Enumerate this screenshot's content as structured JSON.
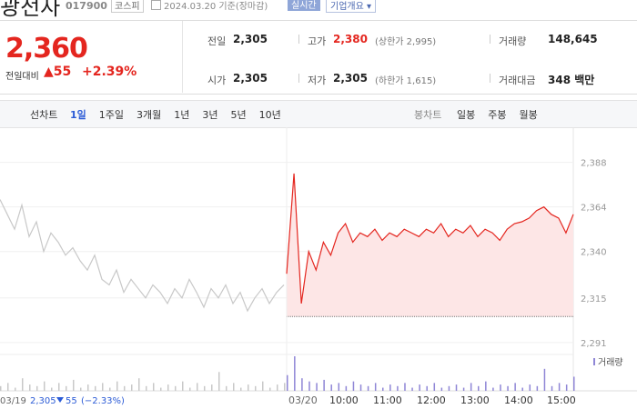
{
  "header": {
    "title": "광전자",
    "code": "017900",
    "market": "코스피",
    "date": "2024.03.20 기준(장마감)",
    "realtime": "실시간",
    "company": "기업개요"
  },
  "quote": {
    "price": "2,360",
    "change_label": "전일대비",
    "change": "55",
    "change_pct": "+2.39%",
    "fields": [
      {
        "label": "전일",
        "value": "2,305"
      },
      {
        "label": "고가",
        "value": "2,380",
        "note": "(상한가 2,995)"
      },
      {
        "label": "거래량",
        "value": "148,645"
      },
      {
        "label": "시가",
        "value": "2,305"
      },
      {
        "label": "저가",
        "value": "2,305",
        "note": "(하한가 1,615)"
      },
      {
        "label": "거래대금",
        "value": "348 백만"
      }
    ]
  },
  "tabs": {
    "line_label": "선차트",
    "line": [
      "1일",
      "1주일",
      "3개월",
      "1년",
      "3년",
      "5년",
      "10년"
    ],
    "candle_label": "봉차트",
    "candle": [
      "일봉",
      "주봉",
      "월봉"
    ]
  },
  "chart_data": {
    "type": "line",
    "ylim": [
      2287,
      2402
    ],
    "yticks": [
      {
        "value": 2291,
        "label": "2,291"
      },
      {
        "value": 2315,
        "label": "2,315"
      },
      {
        "value": 2340,
        "label": "2,340"
      },
      {
        "value": 2364,
        "label": "2,364"
      },
      {
        "value": 2388,
        "label": "2,388"
      }
    ],
    "baseline": 2305,
    "series": [
      {
        "color": "#c8c8c8",
        "values": [
          2368,
          2360,
          2352,
          2365,
          2348,
          2356,
          2340,
          2350,
          2345,
          2338,
          2342,
          2335,
          2330,
          2338,
          2325,
          2322,
          2330,
          2318,
          2325,
          2320,
          2315,
          2322,
          2318,
          2312,
          2320,
          2315,
          2325,
          2318,
          2310,
          2320,
          2315,
          2322,
          2312,
          2318,
          2308,
          2315,
          2320,
          2312,
          2318,
          2322
        ]
      },
      {
        "color": "#e4261f",
        "values": [
          2328,
          2382,
          2312,
          2340,
          2330,
          2345,
          2338,
          2350,
          2355,
          2345,
          2350,
          2348,
          2352,
          2346,
          2350,
          2348,
          2352,
          2350,
          2348,
          2352,
          2350,
          2355,
          2348,
          2352,
          2350,
          2354,
          2348,
          2352,
          2350,
          2346,
          2352,
          2355,
          2356,
          2358,
          2362,
          2364,
          2360,
          2358,
          2350,
          2360
        ]
      }
    ],
    "volume": {
      "name": "거래량",
      "prev": [
        3,
        5,
        2,
        8,
        4,
        3,
        6,
        2,
        5,
        3,
        7,
        2,
        4,
        3,
        5,
        2,
        6,
        3,
        4,
        8,
        3,
        5,
        2,
        4,
        3,
        6,
        2,
        5,
        3,
        4,
        12,
        3,
        5,
        2,
        4,
        3,
        6,
        2,
        4,
        5
      ],
      "today": [
        10,
        22,
        8,
        6,
        5,
        7,
        4,
        5,
        3,
        6,
        4,
        3,
        5,
        2,
        4,
        3,
        5,
        2,
        4,
        3,
        5,
        2,
        3,
        4,
        2,
        5,
        3,
        6,
        2,
        4,
        3,
        5,
        2,
        4,
        3,
        14,
        3,
        5,
        4,
        9
      ]
    },
    "x_labels": [
      "03/20",
      "10:00",
      "11:00",
      "12:00",
      "13:00",
      "14:00",
      "15:00"
    ],
    "prev_day": {
      "date": "03/19",
      "close": "2,305",
      "change": "55",
      "pct": "(−2.33%)"
    }
  }
}
